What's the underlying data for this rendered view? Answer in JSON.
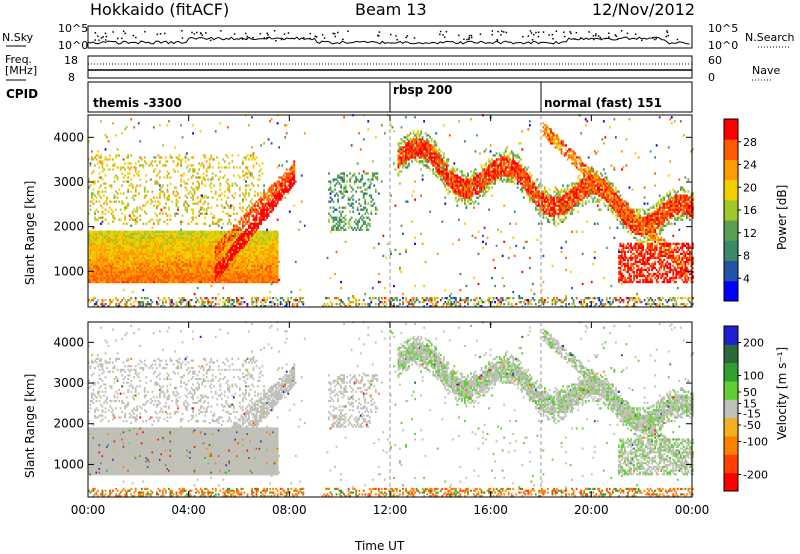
{
  "header": {
    "title": "Hokkaido (fitACF)",
    "beam": "Beam 13",
    "date": "12/Nov/2012"
  },
  "summary_panels": {
    "left_nsky": "N.Sky",
    "nsky_ticks": [
      "10^5",
      "10^0"
    ],
    "right_nsearch": "N.Search",
    "nsearch_ticks": [
      "10^5",
      "10^0"
    ],
    "freq_label": "Freq.",
    "freq_unit": "[MHz]",
    "freq_ticks": [
      "18",
      "8"
    ],
    "nave_ticks": [
      "60",
      "0"
    ],
    "nave_label": "Nave",
    "cpid_label": "CPID"
  },
  "cpid_segments": [
    {
      "label": "themis -3300",
      "start_hour": 0
    },
    {
      "label": "rbsp 200",
      "start_hour": 12
    },
    {
      "label": "normal (fast) 151",
      "start_hour": 18
    }
  ],
  "colors": {
    "power_scale": [
      "#0000ff",
      "#2255aa",
      "#3a8a6a",
      "#58a050",
      "#a0c828",
      "#f0d000",
      "#ff9a00",
      "#ff5a00",
      "#ff0000"
    ],
    "velocity_scale": [
      "#2020d0",
      "#2a6a3a",
      "#30a030",
      "#60d030",
      "#c0c0b8",
      "#f0b020",
      "#ff8000",
      "#ff4000",
      "#ff0000"
    ]
  },
  "chart_data": [
    {
      "type": "heatmap",
      "panel": "power",
      "ylabel": "Slant Range [km]",
      "yticks": [
        "1000",
        "2000",
        "3000",
        "4000"
      ],
      "ylim": [
        200,
        4500
      ],
      "xlim": [
        0,
        24
      ],
      "colorbar_label": "Power [dB]",
      "colorbar_ticks": [
        "4",
        "8",
        "12",
        "16",
        "20",
        "24",
        "28"
      ],
      "colorbar_range": [
        0,
        32
      ]
    },
    {
      "type": "heatmap",
      "panel": "velocity",
      "ylabel": "Slant Range [km]",
      "yticks": [
        "1000",
        "2000",
        "3000",
        "4000"
      ],
      "ylim": [
        200,
        4500
      ],
      "xlim": [
        0,
        24
      ],
      "colorbar_label": "Velocity [m s⁻¹]",
      "colorbar_ticks": [
        "200",
        "100",
        "50",
        "15",
        "-15",
        "-50",
        "-100",
        "-200"
      ],
      "colorbar_range": [
        -250,
        250
      ]
    }
  ],
  "xaxis": {
    "xlabel": "Time UT",
    "tick_labels": [
      "00:00",
      "04:00",
      "08:00",
      "12:00",
      "16:00",
      "20:00",
      "00:00"
    ],
    "tick_hours": [
      0,
      4,
      8,
      12,
      16,
      20,
      24
    ]
  }
}
